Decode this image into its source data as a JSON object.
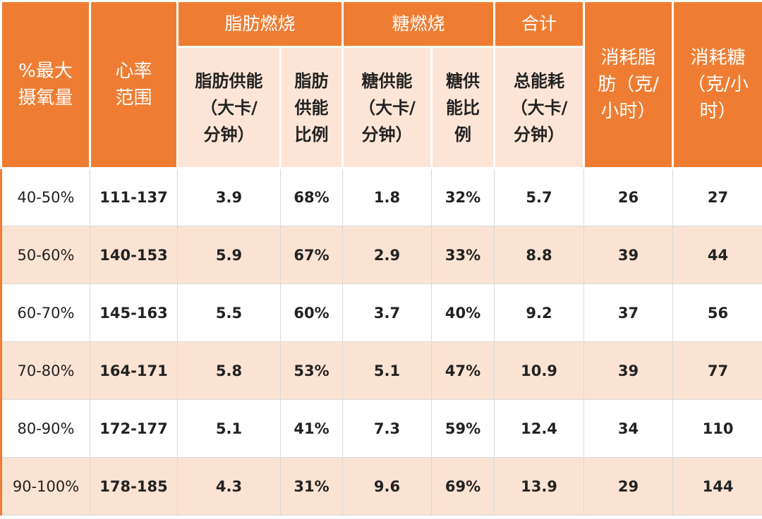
{
  "colors": {
    "accent": "#ee7d33",
    "sub_header_bg": "#fce5d6",
    "even_row_bg": "#fbe3d3"
  },
  "header": {
    "col_oxygen": [
      "%最大",
      "摄氧量"
    ],
    "col_hr": [
      "心率",
      "范围"
    ],
    "group_fat": "脂肪燃烧",
    "group_sugar": "糖燃烧",
    "group_total": "合计",
    "col_fat_g": [
      "消耗脂",
      "肪（克/",
      "小时）"
    ],
    "col_sugar_g": [
      "消耗糖",
      "（克/小",
      "时）"
    ],
    "sub_fat_kcal": [
      "脂肪供能",
      "（大卡/",
      "分钟）"
    ],
    "sub_fat_ratio": [
      "脂肪",
      "供能",
      "比例"
    ],
    "sub_sugar_kcal": [
      "糖供能",
      "（大卡/",
      "分钟）"
    ],
    "sub_sugar_ratio": [
      "糖供",
      "能比",
      "例"
    ],
    "sub_total_kcal": [
      "总能耗",
      "（大卡/",
      "分钟）"
    ]
  },
  "rows": [
    {
      "oxygen": "40-50%",
      "hr": "111-137",
      "fat_kcal": "3.9",
      "fat_ratio": "68%",
      "sugar_kcal": "1.8",
      "sugar_ratio": "32%",
      "total_kcal": "5.7",
      "fat_g": "26",
      "sugar_g": "27"
    },
    {
      "oxygen": "50-60%",
      "hr": "140-153",
      "fat_kcal": "5.9",
      "fat_ratio": "67%",
      "sugar_kcal": "2.9",
      "sugar_ratio": "33%",
      "total_kcal": "8.8",
      "fat_g": "39",
      "sugar_g": "44"
    },
    {
      "oxygen": "60-70%",
      "hr": "145-163",
      "fat_kcal": "5.5",
      "fat_ratio": "60%",
      "sugar_kcal": "3.7",
      "sugar_ratio": "40%",
      "total_kcal": "9.2",
      "fat_g": "37",
      "sugar_g": "56"
    },
    {
      "oxygen": "70-80%",
      "hr": "164-171",
      "fat_kcal": "5.8",
      "fat_ratio": "53%",
      "sugar_kcal": "5.1",
      "sugar_ratio": "47%",
      "total_kcal": "10.9",
      "fat_g": "39",
      "sugar_g": "77"
    },
    {
      "oxygen": "80-90%",
      "hr": "172-177",
      "fat_kcal": "5.1",
      "fat_ratio": "41%",
      "sugar_kcal": "7.3",
      "sugar_ratio": "59%",
      "total_kcal": "12.4",
      "fat_g": "34",
      "sugar_g": "110"
    },
    {
      "oxygen": "90-100%",
      "hr": "178-185",
      "fat_kcal": "4.3",
      "fat_ratio": "31%",
      "sugar_kcal": "9.6",
      "sugar_ratio": "69%",
      "total_kcal": "13.9",
      "fat_g": "29",
      "sugar_g": "144"
    }
  ]
}
